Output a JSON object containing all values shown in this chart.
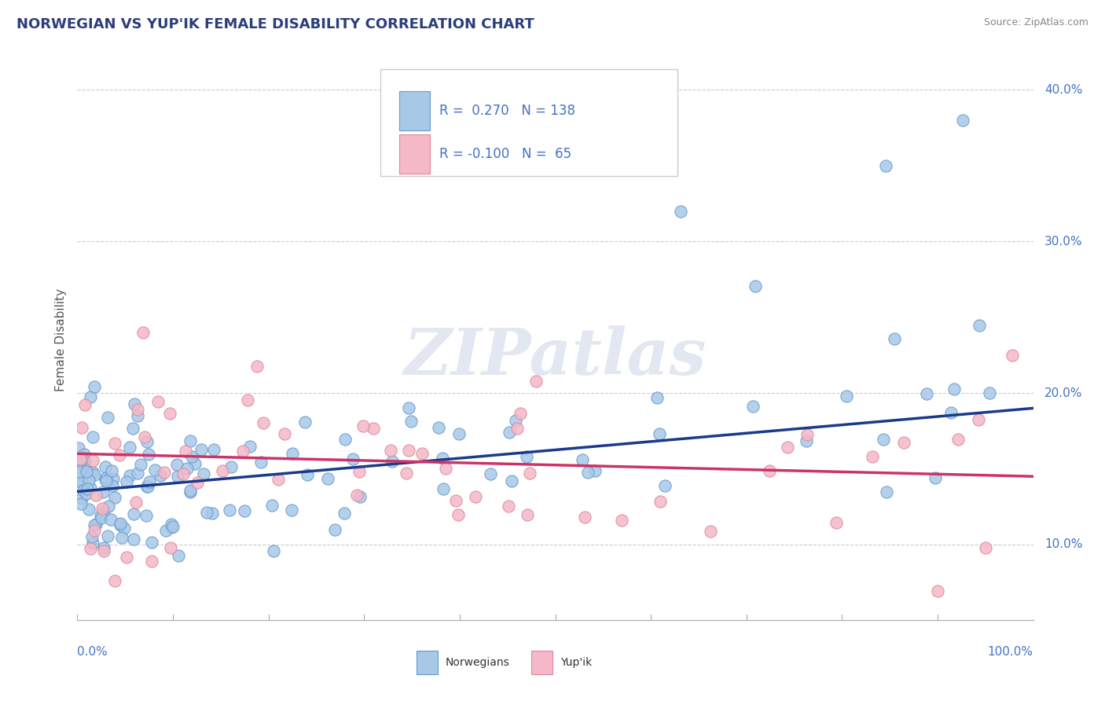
{
  "title": "NORWEGIAN VS YUP'IK FEMALE DISABILITY CORRELATION CHART",
  "source": "Source: ZipAtlas.com",
  "ylabel": "Female Disability",
  "norwegian_R": 0.27,
  "norwegian_N": 138,
  "yupik_R": -0.1,
  "yupik_N": 65,
  "norwegian_color": "#a8c8e8",
  "norwegian_edge_color": "#6699cc",
  "yupik_color": "#f4b8c8",
  "yupik_edge_color": "#e08898",
  "norwegian_line_color": "#1a3a8a",
  "yupik_line_color": "#cc3366",
  "watermark": "ZIPatlas",
  "watermark_color": "#d0d8e8",
  "background_color": "#ffffff",
  "grid_color": "#cccccc",
  "title_color": "#2c3e7a",
  "axis_label_color": "#4472c4",
  "legend_text_color": "#4472c4",
  "xlim": [
    0,
    100
  ],
  "ylim": [
    5,
    42
  ],
  "yticks": [
    10,
    20,
    30,
    40
  ],
  "yticklabels": [
    "10.0%",
    "20.0%",
    "30.0%",
    "40.0%"
  ],
  "norwegian_line_start_y": 13.5,
  "norwegian_line_end_y": 19.0,
  "yupik_line_start_y": 16.0,
  "yupik_line_end_y": 14.5
}
